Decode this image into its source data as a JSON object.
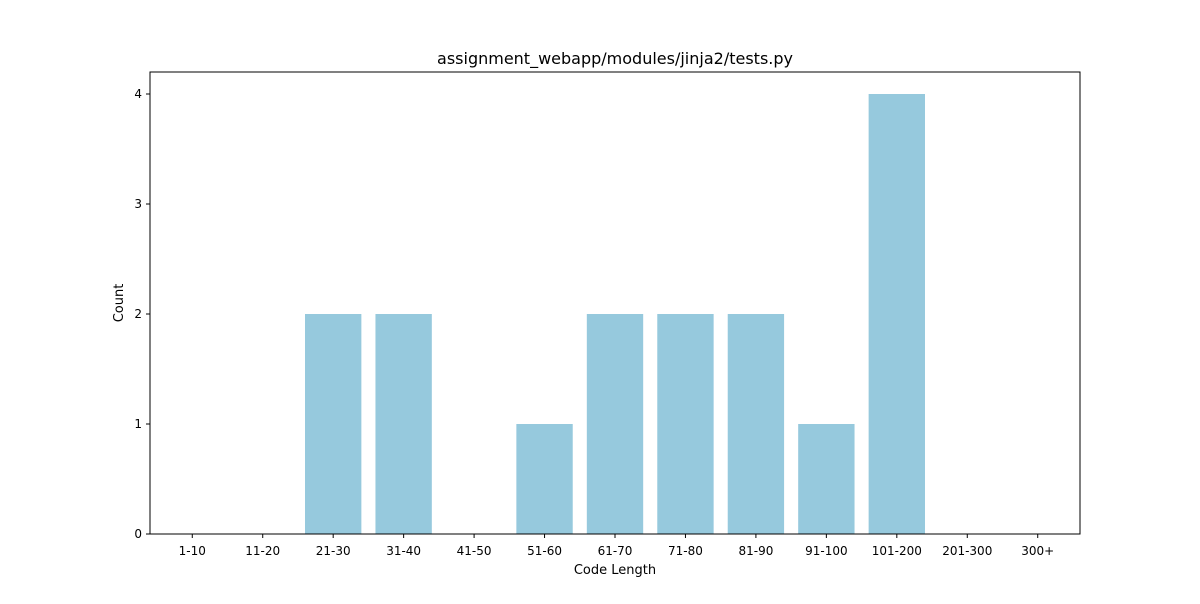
{
  "chart_data": {
    "type": "bar",
    "title": "assignment_webapp/modules/jinja2/tests.py",
    "xlabel": "Code Length",
    "ylabel": "Count",
    "categories": [
      "1-10",
      "11-20",
      "21-30",
      "31-40",
      "41-50",
      "51-60",
      "61-70",
      "71-80",
      "81-90",
      "91-100",
      "101-200",
      "201-300",
      "300+"
    ],
    "values": [
      0,
      0,
      2,
      2,
      0,
      1,
      2,
      2,
      2,
      1,
      4,
      0,
      0
    ],
    "ylim": [
      0,
      4.2
    ],
    "yticks": [
      0,
      1,
      2,
      3,
      4
    ],
    "bar_color": "#96c9dd",
    "grid": false,
    "legend": "none"
  }
}
